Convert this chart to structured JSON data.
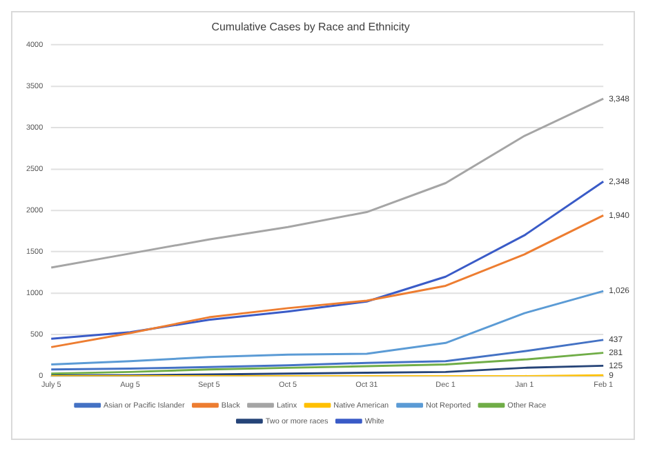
{
  "chart_data": {
    "type": "line",
    "title": "Cumulative Cases by Race and Ethnicity",
    "categories": [
      "July 5",
      "Aug 5",
      "Sept 5",
      "Oct 5",
      "Oct 31",
      "Dec 1",
      "Jan 1",
      "Feb 1"
    ],
    "series": [
      {
        "name": "Asian or Pacific Islander",
        "color": "#4472c4",
        "values": [
          80,
          90,
          110,
          130,
          160,
          180,
          300,
          437
        ],
        "value_labels": [
          null,
          null,
          null,
          null,
          null,
          null,
          null,
          "437"
        ]
      },
      {
        "name": "Black",
        "color": "#ed7d31",
        "values": [
          350,
          520,
          710,
          820,
          910,
          1090,
          1470,
          1940
        ],
        "value_labels": [
          null,
          null,
          null,
          null,
          null,
          null,
          null,
          "1,940"
        ]
      },
      {
        "name": "Latinx",
        "color": "#a5a5a5",
        "values": [
          1310,
          1480,
          1650,
          1800,
          1980,
          2330,
          2900,
          3348
        ],
        "value_labels": [
          null,
          null,
          null,
          null,
          null,
          null,
          null,
          "3,348"
        ]
      },
      {
        "name": "Native American",
        "color": "#ffc000",
        "values": [
          0,
          0,
          0,
          0,
          0,
          0,
          0,
          9
        ],
        "value_labels": [
          null,
          null,
          null,
          null,
          null,
          null,
          null,
          "9"
        ]
      },
      {
        "name": "Not Reported",
        "color": "#5b9bd5",
        "values": [
          140,
          180,
          230,
          260,
          270,
          400,
          760,
          1026
        ],
        "value_labels": [
          null,
          null,
          null,
          null,
          null,
          null,
          null,
          "1,026"
        ]
      },
      {
        "name": "Other Race",
        "color": "#70ad47",
        "values": [
          30,
          50,
          80,
          100,
          120,
          140,
          200,
          281
        ],
        "value_labels": [
          null,
          null,
          null,
          null,
          null,
          null,
          null,
          "281"
        ]
      },
      {
        "name": "Two or more races",
        "color": "#264478",
        "values": [
          10,
          10,
          20,
          30,
          40,
          50,
          100,
          125
        ],
        "value_labels": [
          null,
          null,
          null,
          null,
          null,
          null,
          null,
          "125"
        ]
      },
      {
        "name": "White",
        "color": "#3a5bc7",
        "values": [
          450,
          530,
          680,
          780,
          900,
          1200,
          1700,
          2348
        ],
        "value_labels": [
          null,
          null,
          null,
          null,
          null,
          null,
          null,
          "2,348"
        ]
      }
    ],
    "ylim": [
      0,
      4000
    ],
    "yticks": [
      0,
      500,
      1000,
      1500,
      2000,
      2500,
      3000,
      3500,
      4000
    ],
    "grid": "y",
    "legend": "bottom",
    "marker": "none",
    "line_style": "solid"
  }
}
